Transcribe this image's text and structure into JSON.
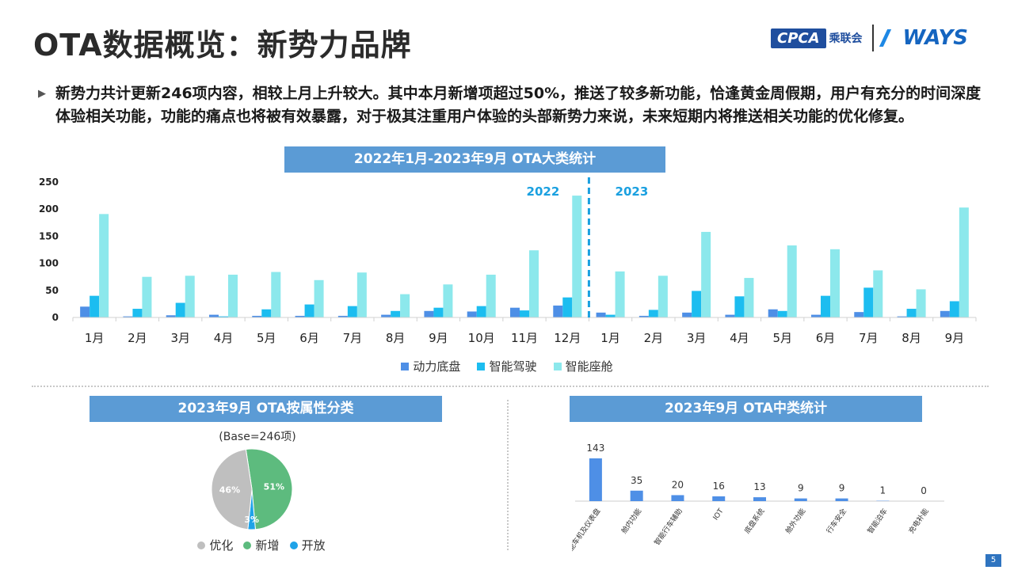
{
  "page": {
    "title": "OTA数据概览：新势力品牌",
    "summary": "新势力共计更新246项内容，相较上月上升较大。其中本月新增项超过50%，推送了较多新功能，恰逢黄金周假期，用户有充分的时间深度体验相关功能，功能的痛点也将被有效暴露，对于极其注重用户体验的头部新势力来说，未来短期内将推送相关功能的优化修复。",
    "page_number": "5"
  },
  "logos": {
    "cpca_text": "CPCA",
    "cpca_sub": "乘联会",
    "ways_text": "WAYS"
  },
  "colors": {
    "title_bar": "#5b9bd5",
    "powertrain": "#4e8fe6",
    "adas": "#1cbdf0",
    "cockpit": "#8ce8ec",
    "pie_optimize": "#bfbfbf",
    "pie_new": "#5dbb7e",
    "pie_open": "#1fa3e8",
    "mid_bar": "#4e8fe6"
  },
  "chart_data": [
    {
      "type": "bar",
      "title": "2022年1月-2023年9月 OTA大类统计",
      "categories": [
        "1月",
        "2月",
        "3月",
        "4月",
        "5月",
        "6月",
        "7月",
        "8月",
        "9月",
        "10月",
        "11月",
        "12月",
        "1月",
        "2月",
        "3月",
        "4月",
        "5月",
        "6月",
        "7月",
        "8月",
        "9月"
      ],
      "year_labels": [
        "2022",
        "2023"
      ],
      "series": [
        {
          "name": "动力底盘",
          "color": "#4e8fe6",
          "values": [
            20,
            2,
            4,
            5,
            3,
            3,
            3,
            5,
            12,
            11,
            18,
            22,
            9,
            3,
            9,
            5,
            15,
            5,
            10,
            2,
            12
          ]
        },
        {
          "name": "智能驾驶",
          "color": "#1cbdf0",
          "values": [
            40,
            16,
            27,
            2,
            15,
            24,
            21,
            12,
            18,
            21,
            13,
            37,
            5,
            14,
            49,
            39,
            12,
            40,
            55,
            16,
            30
          ]
        },
        {
          "name": "智能座舱",
          "color": "#8ce8ec",
          "values": [
            191,
            75,
            77,
            79,
            84,
            69,
            83,
            43,
            61,
            79,
            124,
            225,
            85,
            77,
            158,
            73,
            133,
            126,
            87,
            52,
            203
          ]
        }
      ],
      "yticks": [
        0,
        50,
        100,
        150,
        200,
        250
      ],
      "ylim": [
        0,
        250
      ],
      "legend_position": "bottom",
      "grid": false
    },
    {
      "type": "pie",
      "title": "2023年9月 OTA按属性分类",
      "subtitle": "(Base=246项)",
      "slices": [
        {
          "label": "优化",
          "value": 46,
          "display": "46%",
          "color": "#bfbfbf"
        },
        {
          "label": "新增",
          "value": 51,
          "display": "51%",
          "color": "#5dbb7e"
        },
        {
          "label": "开放",
          "value": 3,
          "display": "3%",
          "color": "#1fa3e8"
        }
      ],
      "legend_position": "bottom"
    },
    {
      "type": "bar",
      "title": "2023年9月 OTA中类统计",
      "categories": [
        "智能车机及仪表盘",
        "舱内功能",
        "智能行车辅助",
        "IOT",
        "底盘系统",
        "舱外功能",
        "行车安全",
        "智能泊车",
        "充电补能"
      ],
      "values": [
        143,
        35,
        20,
        16,
        13,
        9,
        9,
        1,
        0
      ],
      "ylim": [
        0,
        143
      ],
      "data_labels": true
    }
  ]
}
